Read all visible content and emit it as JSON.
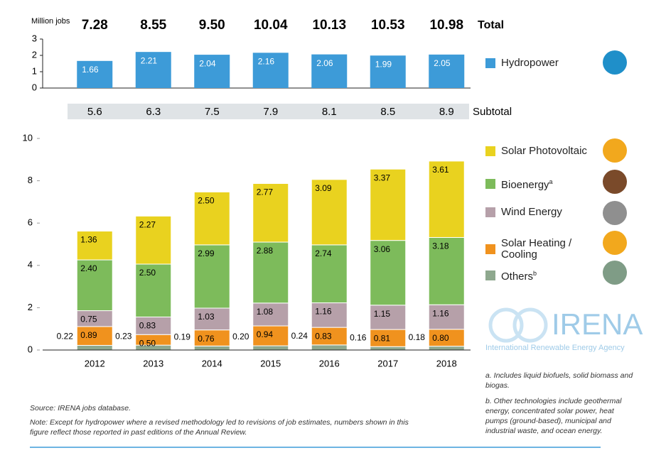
{
  "chart_data": [
    {
      "type": "bar",
      "y_label": "Million jobs",
      "ylim": [
        0,
        3
      ],
      "yticks": [
        0,
        1,
        2,
        3
      ],
      "totals_label": "Total",
      "totals": [
        "7.28",
        "8.55",
        "9.50",
        "10.04",
        "10.13",
        "10.53",
        "10.98"
      ],
      "series": [
        {
          "name": "Hydropower",
          "color": "#3d9bd8",
          "values": [
            1.66,
            2.21,
            2.04,
            2.16,
            2.06,
            1.99,
            2.05
          ]
        }
      ]
    },
    {
      "type": "stacked_bar",
      "categories": [
        "2012",
        "2013",
        "2014",
        "2015",
        "2016",
        "2017",
        "2018"
      ],
      "subtotal_label": "Subtotal",
      "subtotals": [
        "5.6",
        "6.3",
        "7.5",
        "7.9",
        "8.1",
        "8.5",
        "8.9"
      ],
      "ylim": [
        0,
        10
      ],
      "yticks": [
        0,
        2,
        4,
        6,
        8,
        10
      ],
      "series": [
        {
          "name": "Others",
          "footnote": "b",
          "color": "#8ea88e",
          "values": [
            0.22,
            0.23,
            0.19,
            0.2,
            0.24,
            0.16,
            0.18
          ],
          "value_labels": [
            "0.22",
            "0.23",
            "0.19",
            "0.20",
            "0.24",
            "0.16",
            "0.18"
          ]
        },
        {
          "name": "Solar Heating / Cooling",
          "color": "#f0921e",
          "values": [
            0.89,
            0.5,
            0.76,
            0.94,
            0.83,
            0.81,
            0.8
          ],
          "value_labels": [
            "0.89",
            "0.50",
            "0.76",
            "0.94",
            "0.83",
            "0.81",
            "0.80"
          ]
        },
        {
          "name": "Wind Energy",
          "color": "#b6a0a9",
          "values": [
            0.75,
            0.83,
            1.03,
            1.08,
            1.16,
            1.15,
            1.16
          ],
          "value_labels": [
            "0.75",
            "0.83",
            "1.03",
            "1.08",
            "1.16",
            "1.15",
            "1.16"
          ]
        },
        {
          "name": "Bioenergy",
          "footnote": "a",
          "color": "#7dbb5b",
          "values": [
            2.4,
            2.5,
            2.99,
            2.88,
            2.74,
            3.06,
            3.18
          ],
          "value_labels": [
            "2.40",
            "2.50",
            "2.99",
            "2.88",
            "2.74",
            "3.06",
            "3.18"
          ]
        },
        {
          "name": "Solar Photovoltaic",
          "color": "#e9d21f",
          "values": [
            1.36,
            2.27,
            2.5,
            2.77,
            3.09,
            3.37,
            3.61
          ],
          "value_labels": [
            "1.36",
            "2.27",
            "2.50",
            "2.77",
            "3.09",
            "3.37",
            "3.61"
          ]
        }
      ]
    }
  ],
  "footnotes": [
    "a. Includes liquid biofuels, solid biomass and biogas.",
    "b. Other technologies include geothermal energy, concentrated solar power, heat pumps (ground-based), municipal and industrial waste, and ocean energy."
  ],
  "source": "Source: IRENA jobs database.",
  "note": "Note: Except for hydropower where a revised methodology led to revisions of job estimates, numbers shown in this figure reflect those reported in past editions of the Annual Review.",
  "logo": {
    "name": "IRENA",
    "tagline": "International Renewable Energy Agency"
  }
}
